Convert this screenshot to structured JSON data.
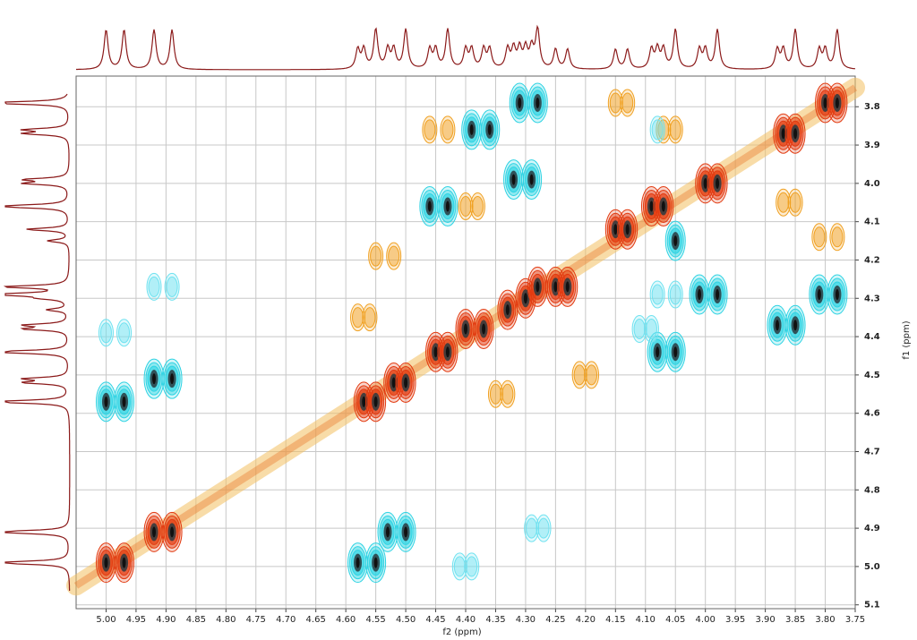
{
  "chart_data": {
    "type": "contour",
    "xlabel": "f2 (ppm)",
    "ylabel": "f1 (ppm)",
    "xlim": [
      5.05,
      3.75
    ],
    "ylim": [
      3.72,
      5.11
    ],
    "xticks": [
      {
        "value": 5,
        "label": "5.00"
      },
      4.95,
      {
        "value": 4.9,
        "label": "4.90"
      },
      4.85,
      {
        "value": 4.8,
        "label": "4.80"
      },
      4.75,
      {
        "value": 4.7,
        "label": "4.70"
      },
      4.65,
      {
        "value": 4.6,
        "label": "4.60"
      },
      4.55,
      {
        "value": 4.5,
        "label": "4.50"
      },
      4.45,
      {
        "value": 4.4,
        "label": "4.40"
      },
      4.35,
      {
        "value": 4.3,
        "label": "4.30"
      },
      4.25,
      {
        "value": 4.2,
        "label": "4.20"
      },
      4.15,
      {
        "value": 4.1,
        "label": "4.10"
      },
      4.05,
      {
        "value": 4,
        "label": "4.00"
      },
      3.95,
      {
        "value": 3.9,
        "label": "3.90"
      },
      3.85,
      {
        "value": 3.8,
        "label": "3.80"
      },
      3.75
    ],
    "yticks": [
      3.8,
      3.9,
      {
        "value": 4,
        "label": "4.0"
      },
      4.1,
      4.2,
      4.3,
      4.4,
      4.5,
      4.6,
      4.7,
      4.8,
      4.9,
      {
        "value": 5,
        "label": "5.0"
      },
      5.1
    ],
    "grid": true,
    "series": [
      {
        "color": "#e23a10",
        "x": [
          5.0,
          4.97,
          4.92,
          4.89,
          4.57,
          4.55,
          4.52,
          4.5,
          4.45,
          4.43,
          4.4,
          4.37,
          4.33,
          4.3,
          4.28,
          4.25,
          4.23,
          4.15,
          4.13,
          4.09,
          4.07,
          4.0,
          3.98,
          3.87,
          3.85,
          3.8,
          3.78
        ],
        "values": [
          4.99,
          4.99,
          4.91,
          4.91,
          4.57,
          4.57,
          4.52,
          4.52,
          4.44,
          4.44,
          4.38,
          4.38,
          4.33,
          4.3,
          4.27,
          4.27,
          4.27,
          4.12,
          4.12,
          4.06,
          4.06,
          4.0,
          4.0,
          3.87,
          3.87,
          3.79,
          3.79
        ]
      },
      {
        "color": "#2ed3e3",
        "x": [
          5.0,
          4.97,
          4.92,
          4.89,
          4.58,
          4.55,
          4.53,
          4.5,
          4.46,
          4.43,
          4.39,
          4.36,
          4.31,
          4.28,
          4.32,
          4.29,
          4.08,
          4.05,
          4.01,
          3.98,
          3.88,
          3.85,
          3.81,
          3.78,
          4.05
        ],
        "values": [
          4.57,
          4.57,
          4.51,
          4.51,
          4.99,
          4.99,
          4.91,
          4.91,
          4.06,
          4.06,
          3.86,
          3.86,
          3.79,
          3.79,
          3.99,
          3.99,
          4.44,
          4.44,
          4.29,
          4.29,
          4.37,
          4.37,
          4.29,
          4.29,
          4.15
        ]
      },
      {
        "color": "#f0a020",
        "x": [
          4.46,
          4.43,
          4.4,
          4.38,
          4.15,
          4.13,
          4.07,
          4.05,
          4.35,
          4.33,
          4.58,
          4.56,
          4.21,
          4.19,
          3.81,
          3.78,
          3.87,
          3.85,
          4.55,
          4.52
        ],
        "values": [
          3.86,
          3.86,
          4.06,
          4.06,
          3.79,
          3.79,
          3.86,
          3.86,
          4.55,
          4.55,
          4.35,
          4.35,
          4.5,
          4.5,
          4.14,
          4.14,
          4.05,
          4.05,
          4.19,
          4.19
        ]
      },
      {
        "color": "#6fe2f0",
        "x": [
          5.0,
          4.97,
          4.92,
          4.89,
          4.41,
          4.39,
          4.29,
          4.27,
          4.11,
          4.09,
          4.08,
          4.05,
          4.08
        ],
        "values": [
          4.39,
          4.39,
          4.27,
          4.27,
          5.0,
          5.0,
          4.9,
          4.9,
          4.38,
          4.38,
          4.29,
          4.29,
          3.86
        ]
      }
    ]
  }
}
